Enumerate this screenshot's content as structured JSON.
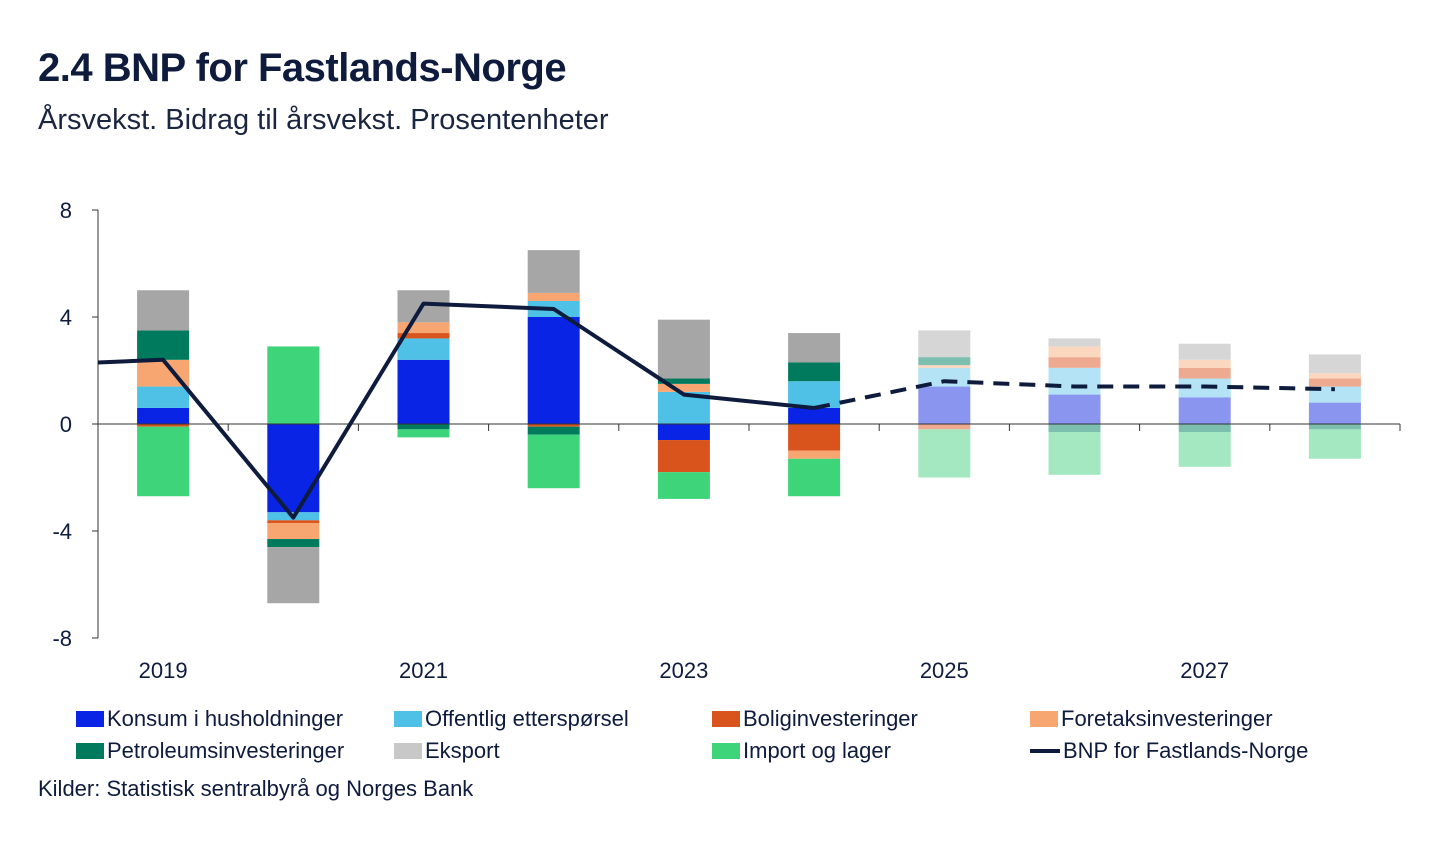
{
  "title": "2.4 BNP for Fastlands-Norge",
  "subtitle": "Årsvekst. Bidrag til årsvekst. Prosentenheter",
  "source": "Kilder: Statistisk sentralbyrå og Norges Bank",
  "chart_data": {
    "type": "bar",
    "stacked": true,
    "title": "2.4 BNP for Fastlands-Norge",
    "subtitle": "Årsvekst. Bidrag til årsvekst. Prosentenheter",
    "categories": [
      "2019",
      "2020",
      "2021",
      "2022",
      "2023",
      "2024",
      "2025",
      "2026",
      "2027",
      "2028"
    ],
    "x_tick_labels": [
      "2019",
      "2021",
      "2023",
      "2025",
      "2027"
    ],
    "y_ticks": [
      "8",
      "4",
      "0",
      "-4",
      "-8"
    ],
    "ylim": [
      -8,
      8
    ],
    "y_tick_values": [
      8,
      4,
      0,
      -4,
      -8
    ],
    "projection_start_index": 6,
    "series": [
      {
        "name": "Konsum i husholdninger",
        "color": "#0a24e6",
        "projection_color": "#8a95f0",
        "values": [
          0.6,
          -3.3,
          2.4,
          4.0,
          -0.6,
          0.6,
          1.4,
          1.1,
          1.0,
          0.8
        ]
      },
      {
        "name": "Offentlig etterspørsel",
        "color": "#4fc0e6",
        "projection_color": "#b3e3f5",
        "values": [
          0.8,
          -0.3,
          0.8,
          0.6,
          1.2,
          1.0,
          0.7,
          1.0,
          0.7,
          0.6
        ]
      },
      {
        "name": "Boliginvesteringer",
        "color": "#d9541c",
        "projection_color": "#eeaa90",
        "values": [
          -0.1,
          -0.1,
          0.2,
          -0.1,
          -1.2,
          -1.0,
          -0.2,
          0.4,
          0.4,
          0.3
        ]
      },
      {
        "name": "Foretaksinvesteringer",
        "color": "#f7a672",
        "projection_color": "#fbd7bf",
        "values": [
          1.0,
          -0.6,
          0.4,
          0.3,
          0.3,
          -0.3,
          0.1,
          0.4,
          0.3,
          0.2
        ]
      },
      {
        "name": "Petroleumsinvesteringer",
        "color": "#007a5c",
        "projection_color": "#7cbfae",
        "values": [
          1.1,
          -0.3,
          -0.2,
          -0.3,
          0.2,
          0.7,
          0.3,
          -0.3,
          -0.3,
          -0.2
        ]
      },
      {
        "name": "Eksport",
        "color": "#a6a6a6",
        "projection_color": "#d6d6d6",
        "values": [
          1.5,
          -2.1,
          1.2,
          1.6,
          2.2,
          1.1,
          1.0,
          0.3,
          0.6,
          0.7
        ]
      },
      {
        "name": "Import og lager",
        "color": "#3dd47a",
        "projection_color": "#a3e8c0",
        "values": [
          -2.6,
          2.9,
          -0.3,
          -2.0,
          -1.0,
          -1.4,
          -1.8,
          -1.6,
          -1.3,
          -1.1
        ]
      }
    ],
    "line": {
      "name": "BNP for Fastlands-Norge",
      "color": "#0e1b3d",
      "x_start": 2018.5,
      "start_value": 2.3,
      "values": [
        2.4,
        -3.5,
        4.5,
        4.3,
        1.1,
        0.6,
        1.6,
        1.4,
        1.4,
        1.3
      ],
      "dashed_from_index": 5
    },
    "legend": [
      {
        "name": "Konsum i husholdninger",
        "color": "#0a24e6",
        "kind": "box"
      },
      {
        "name": "Offentlig etterspørsel",
        "color": "#4fc0e6",
        "kind": "box"
      },
      {
        "name": "Boliginvesteringer",
        "color": "#d9541c",
        "kind": "box"
      },
      {
        "name": "Foretaksinvesteringer",
        "color": "#f7a672",
        "kind": "box"
      },
      {
        "name": "Petroleumsinvesteringer",
        "color": "#007a5c",
        "kind": "box"
      },
      {
        "name": "Eksport",
        "color": "#c8c8c8",
        "kind": "box"
      },
      {
        "name": "Import og lager",
        "color": "#3dd47a",
        "kind": "box"
      },
      {
        "name": "BNP for Fastlands-Norge",
        "color": "#0e1b3d",
        "kind": "line"
      }
    ]
  }
}
